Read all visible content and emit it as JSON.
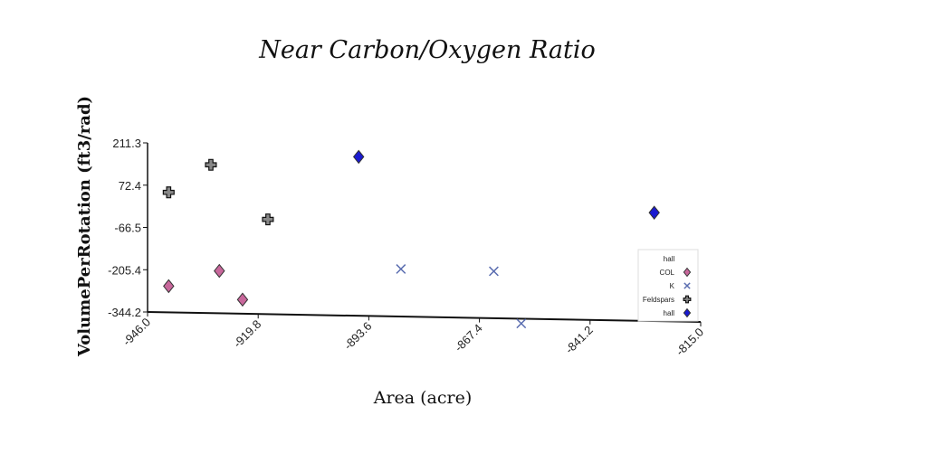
{
  "chart_data": {
    "type": "scatter",
    "title": "Near Carbon/Oxygen Ratio",
    "xlabel": "Area (acre)",
    "ylabel": "VolumePerRotation (ft3/rad)",
    "xlim": [
      -946.0,
      -815.0
    ],
    "ylim": [
      -344.2,
      211.3
    ],
    "xticks": [
      "-946.0",
      "-919.8",
      "-893.6",
      "-867.4",
      "-841.2",
      "-815.0"
    ],
    "yticks": [
      "211.3",
      "72.4",
      "-66.5",
      "-205.4",
      "-344.2"
    ],
    "legend": {
      "title": "hall",
      "position": "right"
    },
    "series": [
      {
        "name": "COL",
        "marker": "diamond",
        "color": "#c8679b",
        "points": [
          [
            -941.0,
            -258.0
          ],
          [
            -929.0,
            -205.0
          ],
          [
            -923.5,
            -298.0
          ]
        ]
      },
      {
        "name": "K",
        "marker": "x",
        "color": "#5a6db0",
        "points": [
          [
            -886.0,
            -188.0
          ],
          [
            -864.0,
            -190.0
          ],
          [
            -857.5,
            -360.0
          ]
        ]
      },
      {
        "name": "Feldspars",
        "marker": "plus",
        "color": "#888888",
        "points": [
          [
            -941.0,
            50.0
          ],
          [
            -931.0,
            143.0
          ],
          [
            -917.5,
            -33.0
          ]
        ]
      },
      {
        "name": "hall",
        "marker": "diamond",
        "color": "#1a1ad0",
        "points": [
          [
            -896.0,
            178.0
          ],
          [
            -826.0,
            12.0
          ]
        ]
      }
    ]
  }
}
